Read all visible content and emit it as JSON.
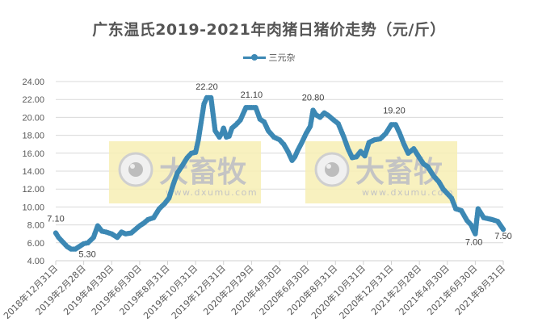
{
  "chart_data": {
    "type": "line",
    "title": "广东温氏2019-2021年肉猪日猪价走势（元/斤）",
    "xlabel": "",
    "ylabel": "",
    "ylim": [
      4,
      24
    ],
    "yticks": [
      "4.00",
      "6.00",
      "8.00",
      "10.00",
      "12.00",
      "14.00",
      "16.00",
      "18.00",
      "20.00",
      "22.00",
      "24.00"
    ],
    "grid": true,
    "legend_position": "top",
    "categories": [
      "2018年12月31日",
      "2019年2月28日",
      "2019年4月30日",
      "2019年6月30日",
      "2019年8月31日",
      "2019年10月31日",
      "2019年12月31日",
      "2020年2月29日",
      "2020年4月30日",
      "2020年6月30日",
      "2020年8月31日",
      "2020年10月31日",
      "2020年12月31日",
      "2021年2月28日",
      "2021年4月30日",
      "2021年6月30日",
      "2021年8月31日"
    ],
    "series": [
      {
        "name": "三元杂",
        "color": "#3c88b4",
        "x": [
          0,
          0.1,
          0.25,
          0.4,
          0.55,
          0.7,
          1.0,
          1.15,
          1.35,
          1.5,
          1.65,
          1.8,
          2.0,
          2.2,
          2.35,
          2.5,
          2.7,
          3.0,
          3.15,
          3.3,
          3.5,
          3.7,
          3.9,
          4.05,
          4.2,
          4.35,
          4.5,
          4.7,
          4.85,
          5.0,
          5.1,
          5.2,
          5.3,
          5.4,
          5.55,
          5.7,
          5.85,
          5.95,
          6.0,
          6.1,
          6.2,
          6.3,
          6.45,
          6.6,
          6.8,
          7.0,
          7.15,
          7.3,
          7.45,
          7.6,
          7.8,
          8.0,
          8.15,
          8.3,
          8.45,
          8.55,
          8.65,
          8.8,
          8.95,
          9.1,
          9.2,
          9.3,
          9.45,
          9.6,
          9.75,
          9.9,
          10.1,
          10.3,
          10.45,
          10.6,
          10.75,
          10.9,
          11.05,
          11.2,
          11.4,
          11.6,
          11.8,
          12.0,
          12.15,
          12.3,
          12.45,
          12.6,
          12.8,
          13.0,
          13.15,
          13.3,
          13.5,
          13.7,
          13.85,
          14.0,
          14.15,
          14.3,
          14.5,
          14.7,
          14.85,
          14.95,
          15.0,
          15.05,
          15.1,
          15.3,
          15.6,
          15.8,
          16.0
        ],
        "values": [
          7.1,
          6.6,
          6.1,
          5.6,
          5.3,
          5.3,
          5.9,
          6.0,
          6.6,
          7.9,
          7.3,
          7.2,
          7.0,
          6.6,
          7.2,
          7.0,
          7.1,
          7.9,
          8.2,
          8.6,
          8.8,
          9.8,
          10.4,
          11.0,
          12.5,
          13.8,
          14.5,
          15.5,
          16.0,
          16.1,
          17.5,
          19.5,
          21.5,
          22.2,
          22.2,
          18.5,
          17.8,
          18.3,
          18.8,
          17.8,
          17.9,
          18.8,
          19.2,
          19.7,
          21.1,
          21.1,
          21.1,
          19.8,
          19.5,
          18.5,
          17.8,
          17.5,
          17.0,
          16.2,
          15.2,
          15.6,
          16.3,
          17.2,
          18.2,
          19.0,
          20.8,
          20.3,
          20.0,
          20.5,
          20.2,
          19.8,
          19.3,
          17.8,
          16.5,
          15.5,
          15.6,
          16.2,
          15.7,
          17.2,
          17.5,
          17.6,
          18.2,
          19.2,
          19.2,
          18.2,
          17.0,
          16.0,
          16.5,
          15.5,
          14.8,
          14.5,
          13.5,
          12.8,
          12.0,
          11.5,
          11.0,
          9.8,
          9.6,
          8.5,
          8.0,
          7.3,
          7.0,
          8.5,
          9.8,
          8.8,
          8.6,
          8.4,
          7.5
        ]
      }
    ],
    "data_labels": [
      {
        "text": "7.10",
        "x": 0,
        "y": 7.1
      },
      {
        "text": "5.30",
        "x": 0.55,
        "y": 5.3
      },
      {
        "text": "22.20",
        "x": 5.4,
        "y": 22.2
      },
      {
        "text": "21.10",
        "x": 7.0,
        "y": 21.1
      },
      {
        "text": "20.80",
        "x": 9.2,
        "y": 20.8
      },
      {
        "text": "19.20",
        "x": 12.1,
        "y": 19.2
      },
      {
        "text": "7.00",
        "x": 14.95,
        "y": 7.0
      },
      {
        "text": "7.50",
        "x": 16.0,
        "y": 7.5
      }
    ]
  },
  "legend": {
    "label": "三元杂"
  },
  "watermark": {
    "text": "大畜牧",
    "url": "www.dxumu.com"
  }
}
